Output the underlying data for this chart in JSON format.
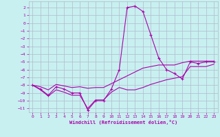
{
  "background_color": "#c8f0f0",
  "grid_color": "#b0b8cc",
  "line_color": "#aa00aa",
  "xlabel": "Windchill (Refroidissement éolien,°C)",
  "hours": [
    0,
    1,
    2,
    3,
    4,
    5,
    6,
    7,
    8,
    9,
    10,
    11,
    12,
    13,
    14,
    15,
    16,
    17,
    18,
    19,
    20,
    21,
    22,
    23
  ],
  "main_y": [
    -8.0,
    -8.5,
    -9.3,
    -8.2,
    -8.5,
    -9.0,
    -9.0,
    -11.2,
    -10.0,
    -10.0,
    -8.5,
    -6.0,
    2.0,
    2.2,
    1.5,
    -1.5,
    -4.5,
    -6.0,
    -6.5,
    -7.2,
    -5.0,
    -5.2,
    -5.0,
    -5.0
  ],
  "top_y": [
    -8.0,
    -8.2,
    -8.6,
    -7.9,
    -8.1,
    -8.3,
    -8.2,
    -8.4,
    -8.3,
    -8.3,
    -7.8,
    -7.3,
    -6.8,
    -6.3,
    -5.8,
    -5.6,
    -5.4,
    -5.4,
    -5.4,
    -5.1,
    -4.9,
    -4.9,
    -4.9,
    -4.9
  ],
  "bot_y": [
    -8.0,
    -8.6,
    -9.4,
    -8.6,
    -8.9,
    -9.3,
    -9.3,
    -11.0,
    -9.9,
    -9.9,
    -8.9,
    -8.3,
    -8.6,
    -8.6,
    -8.3,
    -7.9,
    -7.6,
    -7.3,
    -7.1,
    -6.9,
    -5.6,
    -5.6,
    -5.6,
    -5.3
  ],
  "ylim": [
    -11.5,
    2.8
  ],
  "yticks": [
    2,
    1,
    0,
    -1,
    -2,
    -3,
    -4,
    -5,
    -6,
    -7,
    -8,
    -9,
    -10,
    -11
  ],
  "xlim": [
    -0.5,
    23.5
  ],
  "xticks": [
    0,
    1,
    2,
    3,
    4,
    5,
    6,
    7,
    8,
    9,
    10,
    11,
    12,
    13,
    14,
    15,
    16,
    17,
    18,
    19,
    20,
    21,
    22,
    23
  ]
}
